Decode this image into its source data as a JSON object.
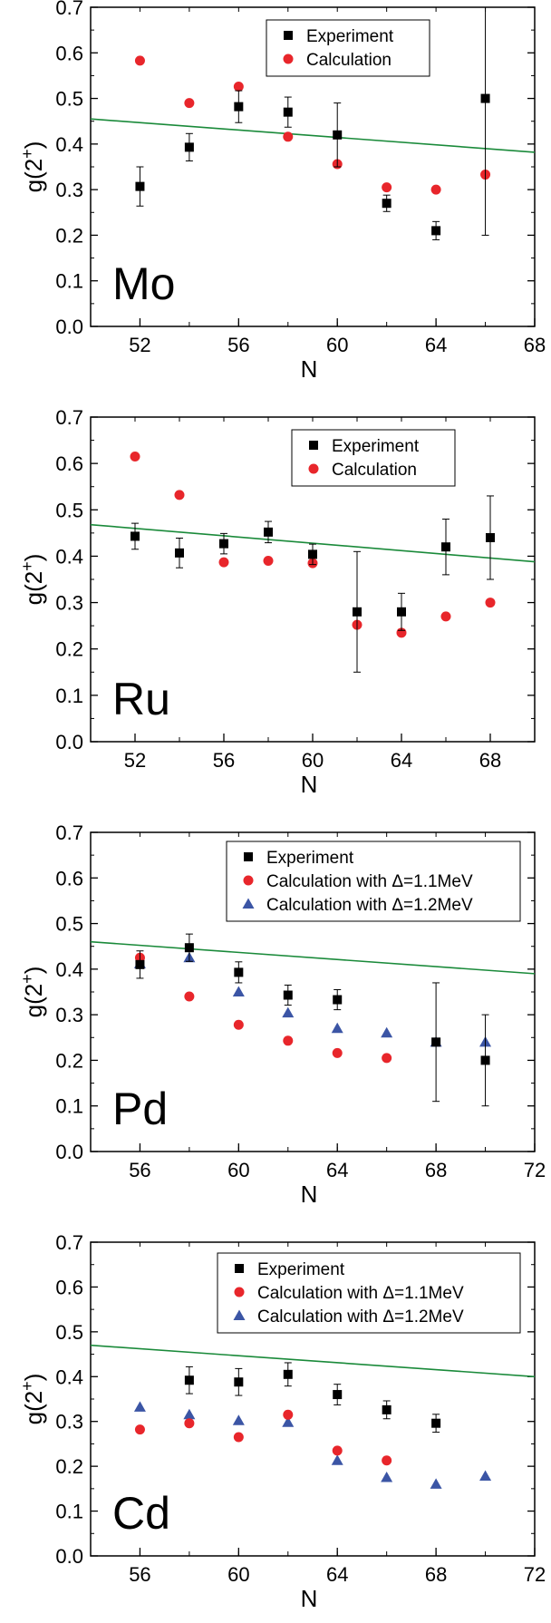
{
  "colors": {
    "experiment": "#000000",
    "calculation": "#e8262b",
    "calculation_alt": "#3b55a5",
    "trend": "#1a8a3a"
  },
  "chart_data": [
    {
      "type": "scatter",
      "panel_label": "Mo",
      "xlabel": "N",
      "ylabel": "g(2+)",
      "xlim": [
        50,
        68
      ],
      "ylim": [
        0.0,
        0.7
      ],
      "xticks": [
        52,
        56,
        60,
        64,
        68
      ],
      "yticks": [
        0.0,
        0.1,
        0.2,
        0.3,
        0.4,
        0.5,
        0.6,
        0.7
      ],
      "legend_position": "top-center",
      "series": [
        {
          "name": "Experiment",
          "marker": "square",
          "color": "#000000",
          "x": [
            52,
            54,
            56,
            58,
            60,
            62,
            64,
            66
          ],
          "y": [
            0.307,
            0.393,
            0.482,
            0.47,
            0.42,
            0.27,
            0.21,
            0.5
          ],
          "err": [
            0.043,
            0.03,
            0.035,
            0.033,
            0.07,
            0.018,
            0.02,
            0.3
          ]
        },
        {
          "name": "Calculation",
          "marker": "circle",
          "color": "#e8262b",
          "x": [
            52,
            54,
            56,
            58,
            60,
            62,
            64,
            66
          ],
          "y": [
            0.583,
            0.49,
            0.526,
            0.416,
            0.356,
            0.305,
            0.3,
            0.333
          ]
        }
      ],
      "trend_line": {
        "x": [
          50,
          68
        ],
        "y": [
          0.455,
          0.382
        ]
      }
    },
    {
      "type": "scatter",
      "panel_label": "Ru",
      "xlabel": "N",
      "ylabel": "g(2+)",
      "xlim": [
        50,
        70
      ],
      "ylim": [
        0.0,
        0.7
      ],
      "xticks": [
        52,
        56,
        60,
        64,
        68
      ],
      "yticks": [
        0.0,
        0.1,
        0.2,
        0.3,
        0.4,
        0.5,
        0.6,
        0.7
      ],
      "legend_position": "top-right",
      "series": [
        {
          "name": "Experiment",
          "marker": "square",
          "color": "#000000",
          "x": [
            52,
            54,
            56,
            58,
            60,
            62,
            64,
            66,
            68
          ],
          "y": [
            0.443,
            0.407,
            0.427,
            0.452,
            0.404,
            0.28,
            0.28,
            0.42,
            0.44
          ],
          "err": [
            0.028,
            0.032,
            0.022,
            0.023,
            0.022,
            0.13,
            0.04,
            0.06,
            0.09
          ]
        },
        {
          "name": "Calculation",
          "marker": "circle",
          "color": "#e8262b",
          "x": [
            52,
            54,
            56,
            58,
            60,
            62,
            64,
            66,
            68
          ],
          "y": [
            0.615,
            0.532,
            0.387,
            0.39,
            0.385,
            0.252,
            0.235,
            0.27,
            0.3
          ]
        }
      ],
      "trend_line": {
        "x": [
          50,
          70
        ],
        "y": [
          0.468,
          0.388
        ]
      }
    },
    {
      "type": "scatter",
      "panel_label": "Pd",
      "xlabel": "N",
      "ylabel": "g(2+)",
      "xlim": [
        54,
        72
      ],
      "ylim": [
        0.0,
        0.7
      ],
      "xticks": [
        56,
        60,
        64,
        68,
        72
      ],
      "yticks": [
        0.0,
        0.1,
        0.2,
        0.3,
        0.4,
        0.5,
        0.6,
        0.7
      ],
      "legend_position": "top-right",
      "series": [
        {
          "name": "Experiment",
          "marker": "square",
          "color": "#000000",
          "x": [
            56,
            58,
            60,
            62,
            64,
            68,
            70
          ],
          "y": [
            0.41,
            0.447,
            0.393,
            0.343,
            0.333,
            0.24,
            0.2
          ],
          "err": [
            0.03,
            0.03,
            0.023,
            0.022,
            0.022,
            0.13,
            0.1
          ]
        },
        {
          "name": "Calculation with Δ=1.1MeV",
          "marker": "circle",
          "color": "#e8262b",
          "x": [
            56,
            58,
            60,
            62,
            64,
            66
          ],
          "y": [
            0.425,
            0.34,
            0.278,
            0.243,
            0.216,
            0.205
          ]
        },
        {
          "name": "Calculation with Δ=1.2MeV",
          "marker": "triangle",
          "color": "#3b55a5",
          "x": [
            56,
            58,
            60,
            62,
            64,
            66,
            68,
            70
          ],
          "y": [
            0.412,
            0.425,
            0.35,
            0.304,
            0.27,
            0.26,
            0.24,
            0.24
          ]
        }
      ],
      "trend_line": {
        "x": [
          54,
          72
        ],
        "y": [
          0.46,
          0.39
        ]
      }
    },
    {
      "type": "scatter",
      "panel_label": "Cd",
      "xlabel": "N",
      "ylabel": "g(2+)",
      "xlim": [
        54,
        72
      ],
      "ylim": [
        0.0,
        0.7
      ],
      "xticks": [
        56,
        60,
        64,
        68,
        72
      ],
      "yticks": [
        0.0,
        0.1,
        0.2,
        0.3,
        0.4,
        0.5,
        0.6,
        0.7
      ],
      "legend_position": "top-right",
      "series": [
        {
          "name": "Experiment",
          "marker": "square",
          "color": "#000000",
          "x": [
            58,
            60,
            62,
            64,
            66,
            68
          ],
          "y": [
            0.392,
            0.388,
            0.405,
            0.36,
            0.326,
            0.296
          ],
          "err": [
            0.03,
            0.03,
            0.026,
            0.023,
            0.02,
            0.02
          ]
        },
        {
          "name": "Calculation with Δ=1.1MeV",
          "marker": "circle",
          "color": "#e8262b",
          "x": [
            56,
            58,
            60,
            62,
            64,
            66
          ],
          "y": [
            0.282,
            0.296,
            0.265,
            0.315,
            0.235,
            0.213
          ]
        },
        {
          "name": "Calculation with Δ=1.2MeV",
          "marker": "triangle",
          "color": "#3b55a5",
          "x": [
            56,
            58,
            60,
            62,
            64,
            66,
            68,
            70
          ],
          "y": [
            0.332,
            0.315,
            0.302,
            0.298,
            0.213,
            0.175,
            0.16,
            0.178
          ]
        }
      ],
      "trend_line": {
        "x": [
          54,
          72
        ],
        "y": [
          0.47,
          0.4
        ]
      }
    }
  ]
}
